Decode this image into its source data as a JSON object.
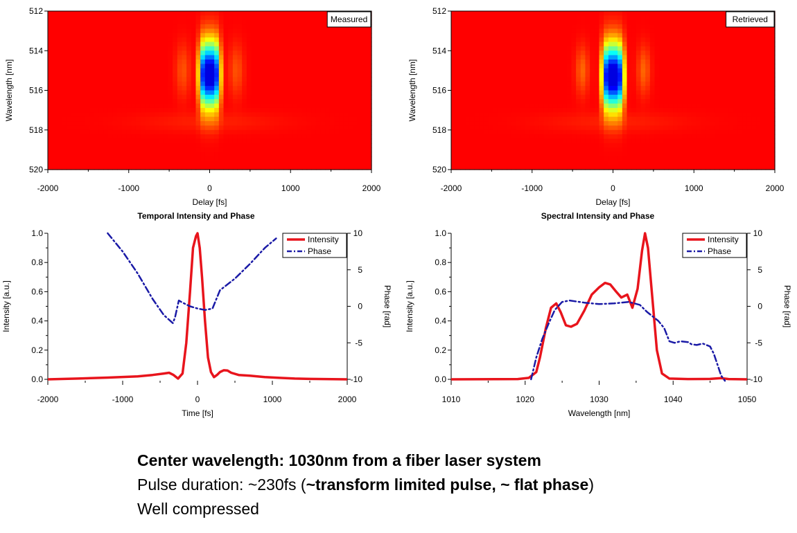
{
  "colors": {
    "intensity": "#e8141c",
    "phase": "#1a1aa6",
    "heatmap_low": "#ff2a00",
    "heatmap_high": "#3a00c0"
  },
  "chart_data": [
    {
      "type": "heatmap",
      "id": "measured",
      "corner_label": "Measured",
      "xlabel": "Delay [fs]",
      "ylabel": "Wavelength [nm]",
      "xlim": [
        -2000,
        2000
      ],
      "ylim": [
        520,
        512
      ],
      "xticks": [
        "-2000",
        "-1000",
        "0",
        "1000",
        "2000"
      ],
      "yticks": [
        "512",
        "514",
        "516",
        "518",
        "520"
      ],
      "peak": {
        "delay_fs": 0,
        "wavelength_nm": 515.2,
        "delay_width_fs": 130,
        "wavelength_width_nm": 1.6
      },
      "side_lobes": [
        {
          "delay_fs": -330,
          "wavelength_nm": 515.0,
          "delay_width_fs": 90,
          "wavelength_width_nm": 1.3,
          "strength": 0.08
        },
        {
          "delay_fs": 330,
          "wavelength_nm": 515.0,
          "delay_width_fs": 90,
          "wavelength_width_nm": 1.3,
          "strength": 0.08
        }
      ]
    },
    {
      "type": "heatmap",
      "id": "retrieved",
      "corner_label": "Retrieved",
      "xlabel": "Delay [fs]",
      "ylabel": "Wavelength [nm]",
      "xlim": [
        -2000,
        2000
      ],
      "ylim": [
        520,
        512
      ],
      "xticks": [
        "-2000",
        "-1000",
        "0",
        "1000",
        "2000"
      ],
      "yticks": [
        "512",
        "514",
        "516",
        "518",
        "520"
      ],
      "peak": {
        "delay_fs": 0,
        "wavelength_nm": 515.3,
        "delay_width_fs": 135,
        "wavelength_width_nm": 1.6
      },
      "side_lobes": [
        {
          "delay_fs": -380,
          "wavelength_nm": 515.0,
          "delay_width_fs": 80,
          "wavelength_width_nm": 1.2,
          "strength": 0.1
        },
        {
          "delay_fs": 380,
          "wavelength_nm": 515.0,
          "delay_width_fs": 80,
          "wavelength_width_nm": 1.2,
          "strength": 0.1
        }
      ]
    },
    {
      "type": "line",
      "id": "temporal",
      "title": "Temporal Intensity and Phase",
      "xlabel": "Time [fs]",
      "ylabel": "Intensity [a.u.]",
      "y2label": "Phase [rad]",
      "xlim": [
        -2000,
        2000
      ],
      "ylim": [
        0,
        1
      ],
      "y2lim": [
        -10,
        10
      ],
      "xticks": [
        "-2000",
        "-1000",
        "0",
        "1000",
        "2000"
      ],
      "yticks": [
        "0.0",
        "0.2",
        "0.4",
        "0.6",
        "0.8",
        "1.0"
      ],
      "y2ticks": [
        "-10",
        "-5",
        "0",
        "5",
        "10"
      ],
      "legend": [
        "Intensity",
        "Phase"
      ],
      "series": [
        {
          "name": "Intensity",
          "axis": "left",
          "x": [
            -2000,
            -1600,
            -1200,
            -800,
            -600,
            -450,
            -380,
            -320,
            -260,
            -200,
            -150,
            -100,
            -60,
            -20,
            0,
            30,
            60,
            100,
            140,
            180,
            220,
            260,
            300,
            350,
            400,
            450,
            550,
            700,
            900,
            1100,
            1300,
            1500,
            1700,
            2000
          ],
          "y": [
            0.0,
            0.005,
            0.012,
            0.02,
            0.03,
            0.04,
            0.045,
            0.03,
            0.005,
            0.04,
            0.25,
            0.6,
            0.9,
            0.98,
            1.0,
            0.9,
            0.7,
            0.4,
            0.15,
            0.05,
            0.015,
            0.03,
            0.05,
            0.062,
            0.06,
            0.045,
            0.03,
            0.025,
            0.015,
            0.01,
            0.005,
            0.003,
            0.002,
            0.0
          ]
        },
        {
          "name": "Phase",
          "axis": "right",
          "x": [
            -1200,
            -1000,
            -800,
            -600,
            -450,
            -330,
            -300,
            -250,
            -200,
            -100,
            0,
            100,
            200,
            300,
            400,
            500,
            700,
            900,
            1050
          ],
          "y": [
            10,
            7.5,
            4.5,
            1,
            -1.2,
            -2.3,
            -1.5,
            0.8,
            0.5,
            0,
            -0.3,
            -0.5,
            -0.3,
            2.2,
            3,
            3.8,
            5.8,
            8,
            9.3
          ]
        }
      ]
    },
    {
      "type": "line",
      "id": "spectral",
      "title": "Spectral Intensity and Phase",
      "xlabel": "Wavelength [nm]",
      "ylabel": "Intensity [a.u.]",
      "y2label": "Phase [rad]",
      "xlim": [
        1010,
        1050
      ],
      "ylim": [
        0,
        1
      ],
      "y2lim": [
        -10,
        10
      ],
      "xticks": [
        "1010",
        "1020",
        "1030",
        "1040",
        "1050"
      ],
      "yticks": [
        "0.0",
        "0.2",
        "0.4",
        "0.6",
        "0.8",
        "1.0"
      ],
      "y2ticks": [
        "-10",
        "-5",
        "0",
        "5",
        "10"
      ],
      "legend": [
        "Intensity",
        "Phase"
      ],
      "series": [
        {
          "name": "Intensity",
          "axis": "left",
          "x": [
            1010,
            1019,
            1020.5,
            1021.5,
            1022,
            1022.8,
            1023.5,
            1024.2,
            1024.8,
            1025.5,
            1026.2,
            1027,
            1028,
            1029,
            1030,
            1030.8,
            1031.5,
            1032.3,
            1033,
            1033.8,
            1034.5,
            1035.2,
            1035.8,
            1036.2,
            1036.6,
            1037.2,
            1037.8,
            1038.5,
            1039.5,
            1042,
            1045,
            1046.5,
            1047.5,
            1050
          ],
          "y": [
            0.0,
            0.002,
            0.01,
            0.05,
            0.15,
            0.35,
            0.49,
            0.52,
            0.46,
            0.37,
            0.36,
            0.38,
            0.47,
            0.58,
            0.63,
            0.66,
            0.65,
            0.6,
            0.56,
            0.58,
            0.49,
            0.62,
            0.88,
            1.0,
            0.9,
            0.55,
            0.2,
            0.04,
            0.005,
            0.002,
            0.003,
            0.008,
            0.002,
            0.0
          ]
        },
        {
          "name": "Phase",
          "axis": "right",
          "x": [
            1020.8,
            1021.5,
            1022.3,
            1023.2,
            1024,
            1025,
            1026,
            1028,
            1030,
            1032,
            1034,
            1035.5,
            1036.5,
            1038,
            1038.8,
            1039.5,
            1040.2,
            1041,
            1042,
            1042.5,
            1043.2,
            1044,
            1045,
            1045.5,
            1046.5,
            1047
          ],
          "y": [
            -10,
            -7,
            -4.5,
            -2.3,
            -0.5,
            0.6,
            0.8,
            0.5,
            0.3,
            0.4,
            0.6,
            0.2,
            -0.8,
            -2,
            -3,
            -4.8,
            -5,
            -4.8,
            -4.9,
            -5.2,
            -5.3,
            -5.1,
            -5.5,
            -6.5,
            -9.5,
            -10.2
          ]
        }
      ]
    }
  ],
  "caption": {
    "line1": "Center wavelength: 1030nm from a fiber laser system",
    "line2_prefix": "Pulse duration: ~230fs (",
    "line2_bold": "~transform limited pulse, ~ flat phase",
    "line2_suffix": ")",
    "line3": "Well compressed"
  }
}
